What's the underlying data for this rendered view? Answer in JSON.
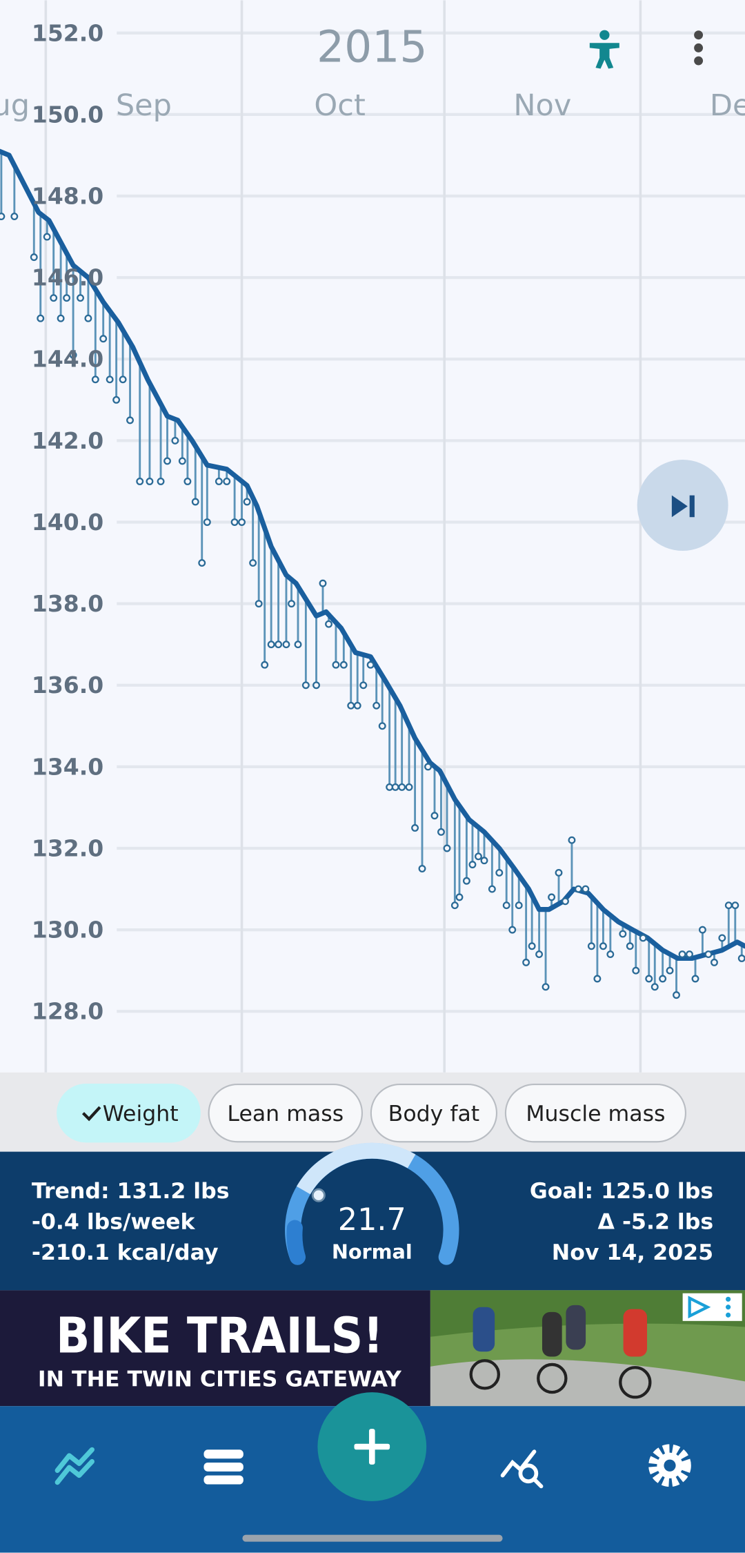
{
  "header": {
    "year": "2015"
  },
  "chart_data": {
    "type": "line",
    "xlim": [
      -7,
      107
    ],
    "xticks": [
      {
        "value": -31,
        "label": "Aug"
      },
      {
        "value": 0,
        "label": "Sep"
      },
      {
        "value": 30,
        "label": "Oct"
      },
      {
        "value": 61,
        "label": "Nov"
      },
      {
        "value": 91,
        "label": "Dec"
      }
    ],
    "ylim": [
      126.5,
      152.8
    ],
    "yticks": [
      {
        "value": 128,
        "label": "128.0"
      },
      {
        "value": 130,
        "label": "130.0"
      },
      {
        "value": 132,
        "label": "132.0"
      },
      {
        "value": 134,
        "label": "134.0"
      },
      {
        "value": 136,
        "label": "136.0"
      },
      {
        "value": 138,
        "label": "138.0"
      },
      {
        "value": 140,
        "label": "140.0"
      },
      {
        "value": 142,
        "label": "142.0"
      },
      {
        "value": 144,
        "label": "144.0"
      },
      {
        "value": 146,
        "label": "146.0"
      },
      {
        "value": 148,
        "label": "148.0"
      },
      {
        "value": 150,
        "label": "150.0"
      },
      {
        "value": 152,
        "label": "152.0"
      }
    ],
    "grid": true,
    "series": [
      {
        "style": "line",
        "color": "#1a5f9e",
        "x": [
          -7.1,
          -5.6,
          -1.1,
          0.5,
          4.2,
          6.5,
          8.8,
          11.1,
          13.3,
          15.6,
          18.6,
          20.2,
          22.4,
          24.7,
          27.7,
          30.8,
          32.3,
          34.5,
          36.8,
          38.3,
          41.4,
          42.9,
          45.2,
          47.4,
          49.7,
          52.0,
          54.2,
          56.5,
          58.8,
          60.3,
          62.6,
          64.8,
          67.1,
          69.4,
          71.7,
          73.9,
          75.5,
          77.0,
          79.2,
          80.8,
          83.0,
          85.3,
          87.6,
          89.8,
          92.1,
          94.4,
          96.7,
          98.9,
          101.2,
          103.5,
          105.8,
          107
        ],
        "values": [
          149.1,
          149.0,
          147.6,
          147.4,
          146.3,
          146.0,
          145.4,
          144.9,
          144.3,
          143.5,
          142.6,
          142.5,
          142.0,
          141.4,
          141.3,
          140.9,
          140.4,
          139.4,
          138.7,
          138.5,
          137.7,
          137.8,
          137.4,
          136.8,
          136.7,
          136.1,
          135.5,
          134.7,
          134.1,
          133.9,
          133.2,
          132.7,
          132.4,
          132.0,
          131.5,
          131.0,
          130.5,
          130.5,
          130.7,
          131.0,
          130.9,
          130.5,
          130.2,
          130.0,
          129.8,
          129.5,
          129.3,
          129.3,
          129.4,
          129.5,
          129.7,
          129.6
        ]
      },
      {
        "style": "stems",
        "color": "#5b93b8",
        "x": [
          -6.8,
          -4.8,
          -1.8,
          -0.8,
          0.2,
          1.2,
          2.3,
          3.2,
          4.2,
          5.3,
          6.5,
          7.6,
          8.8,
          9.8,
          10.8,
          11.8,
          12.9,
          14.4,
          15.9,
          17.6,
          18.6,
          19.8,
          20.9,
          21.7,
          22.9,
          23.9,
          24.7,
          26.5,
          27.7,
          28.9,
          30.0,
          30.8,
          31.7,
          32.6,
          33.5,
          34.5,
          35.6,
          36.8,
          37.6,
          38.6,
          39.8,
          41.4,
          42.4,
          43.3,
          44.4,
          45.6,
          46.7,
          47.7,
          48.6,
          49.7,
          50.6,
          51.5,
          52.6,
          53.5,
          54.5,
          55.6,
          56.5,
          57.6,
          58.5,
          59.5,
          60.5,
          61.4,
          62.6,
          63.3,
          64.4,
          65.3,
          66.2,
          67.1,
          68.3,
          69.4,
          70.5,
          71.4,
          72.4,
          73.5,
          74.4,
          75.5,
          76.5,
          77.4,
          78.5,
          79.5,
          80.5,
          81.5,
          82.6,
          83.5,
          84.4,
          85.3,
          86.4,
          88.3,
          89.4,
          90.3,
          91.4,
          92.3,
          93.2,
          94.4,
          95.5,
          96.5,
          97.4,
          98.5,
          99.4,
          100.5,
          101.4,
          102.3,
          103.5,
          104.5,
          105.5,
          106.5
        ],
        "values": [
          147.5,
          147.5,
          146.5,
          145.0,
          147.0,
          145.5,
          145.0,
          145.5,
          144.1,
          145.5,
          145.0,
          143.5,
          144.5,
          143.5,
          143.0,
          143.5,
          142.5,
          141.0,
          141.0,
          141.0,
          141.5,
          142.0,
          141.5,
          141.0,
          140.5,
          139.0,
          140.0,
          141.0,
          141.0,
          140.0,
          140.0,
          140.5,
          139.0,
          138.0,
          136.5,
          137.0,
          137.0,
          137.0,
          138.0,
          137.0,
          136.0,
          136.0,
          138.5,
          137.5,
          136.5,
          136.5,
          135.5,
          135.5,
          136.0,
          136.5,
          135.5,
          135.0,
          133.5,
          133.5,
          133.5,
          133.5,
          132.5,
          131.5,
          134.0,
          132.8,
          132.4,
          132.0,
          130.6,
          130.8,
          131.2,
          131.6,
          131.8,
          131.7,
          131.0,
          131.4,
          130.6,
          130.0,
          130.6,
          129.2,
          129.6,
          129.4,
          128.6,
          130.8,
          131.4,
          130.7,
          132.2,
          131.0,
          131.0,
          129.6,
          128.8,
          129.6,
          129.4,
          129.9,
          129.6,
          129.0,
          129.8,
          128.8,
          128.6,
          128.8,
          129.0,
          128.4,
          129.4,
          129.4,
          128.8,
          130.0,
          129.4,
          129.2,
          129.8,
          130.6,
          130.6,
          129.3
        ]
      }
    ]
  },
  "chips": [
    {
      "label": "Weight",
      "selected": true
    },
    {
      "label": "Lean mass",
      "selected": false
    },
    {
      "label": "Body fat",
      "selected": false
    },
    {
      "label": "Muscle mass",
      "selected": false
    }
  ],
  "summary": {
    "trend": "Trend: 131.2 lbs",
    "rate": "-0.4 lbs/week",
    "energy": "-210.1 kcal/day",
    "bmi": "21.7",
    "bmi_class": "Normal",
    "goal": "Goal: 125.0 lbs",
    "delta": "Δ -5.2 lbs",
    "goal_date": "Nov 14, 2025"
  },
  "ad": {
    "headline": "BIKE TRAILS!",
    "tagline": "IN THE TWIN CITIES GATEWAY"
  }
}
